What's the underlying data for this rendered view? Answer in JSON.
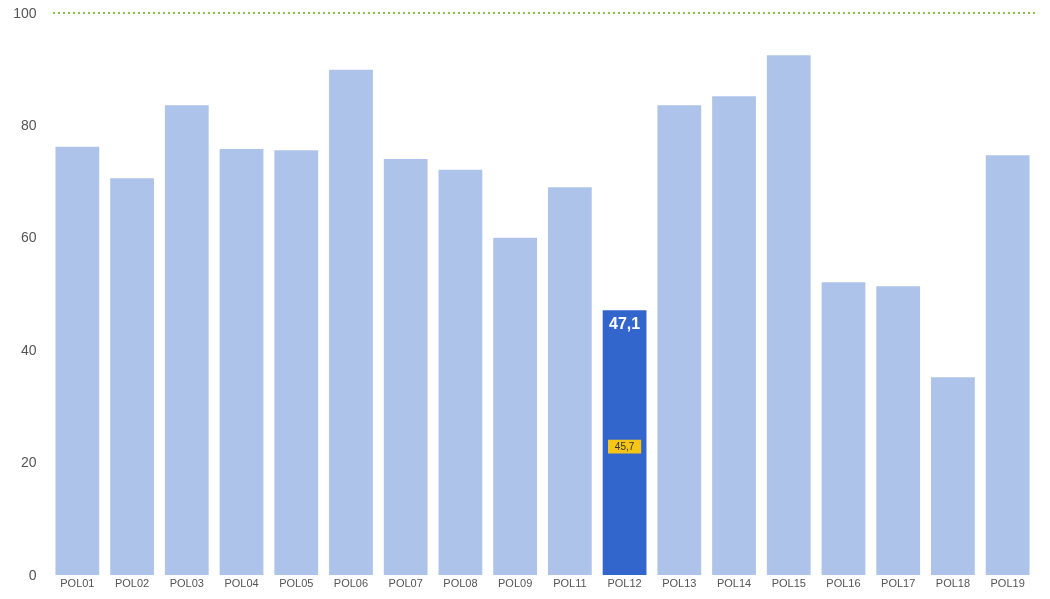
{
  "chart_data": {
    "type": "bar",
    "categories": [
      "POL01",
      "POL02",
      "POL03",
      "POL04",
      "POL05",
      "POL06",
      "POL07",
      "POL08",
      "POL09",
      "POL11",
      "POL12",
      "POL13",
      "POL14",
      "POL15",
      "POL16",
      "POL17",
      "POL18",
      "POL19"
    ],
    "values": [
      76.2,
      70.6,
      83.6,
      75.8,
      75.6,
      89.9,
      74.0,
      72.1,
      60.0,
      69.0,
      47.1,
      83.6,
      85.2,
      92.5,
      52.1,
      51.4,
      35.2,
      74.7
    ],
    "colors": [
      "#aec3ea",
      "#aec3ea",
      "#aec3ea",
      "#aec3ea",
      "#aec3ea",
      "#aec3ea",
      "#aec3ea",
      "#aec3ea",
      "#aec3ea",
      "#aec3ea",
      "#3366cc",
      "#aec3ea",
      "#aec3ea",
      "#aec3ea",
      "#aec3ea",
      "#aec3ea",
      "#aec3ea",
      "#aec3ea"
    ],
    "value_labels": [
      null,
      null,
      null,
      null,
      null,
      null,
      null,
      null,
      null,
      null,
      "47,1",
      null,
      null,
      null,
      null,
      null,
      null,
      null
    ],
    "annotations": [
      "45,7"
    ],
    "ylim": [
      0,
      100
    ],
    "yticks": [
      0,
      20,
      40,
      60,
      80,
      100
    ],
    "grid": false,
    "ref_lines": [
      {
        "axis": "y",
        "value": 100,
        "color": "#8bc34a",
        "line_style": "dotted"
      }
    ]
  }
}
